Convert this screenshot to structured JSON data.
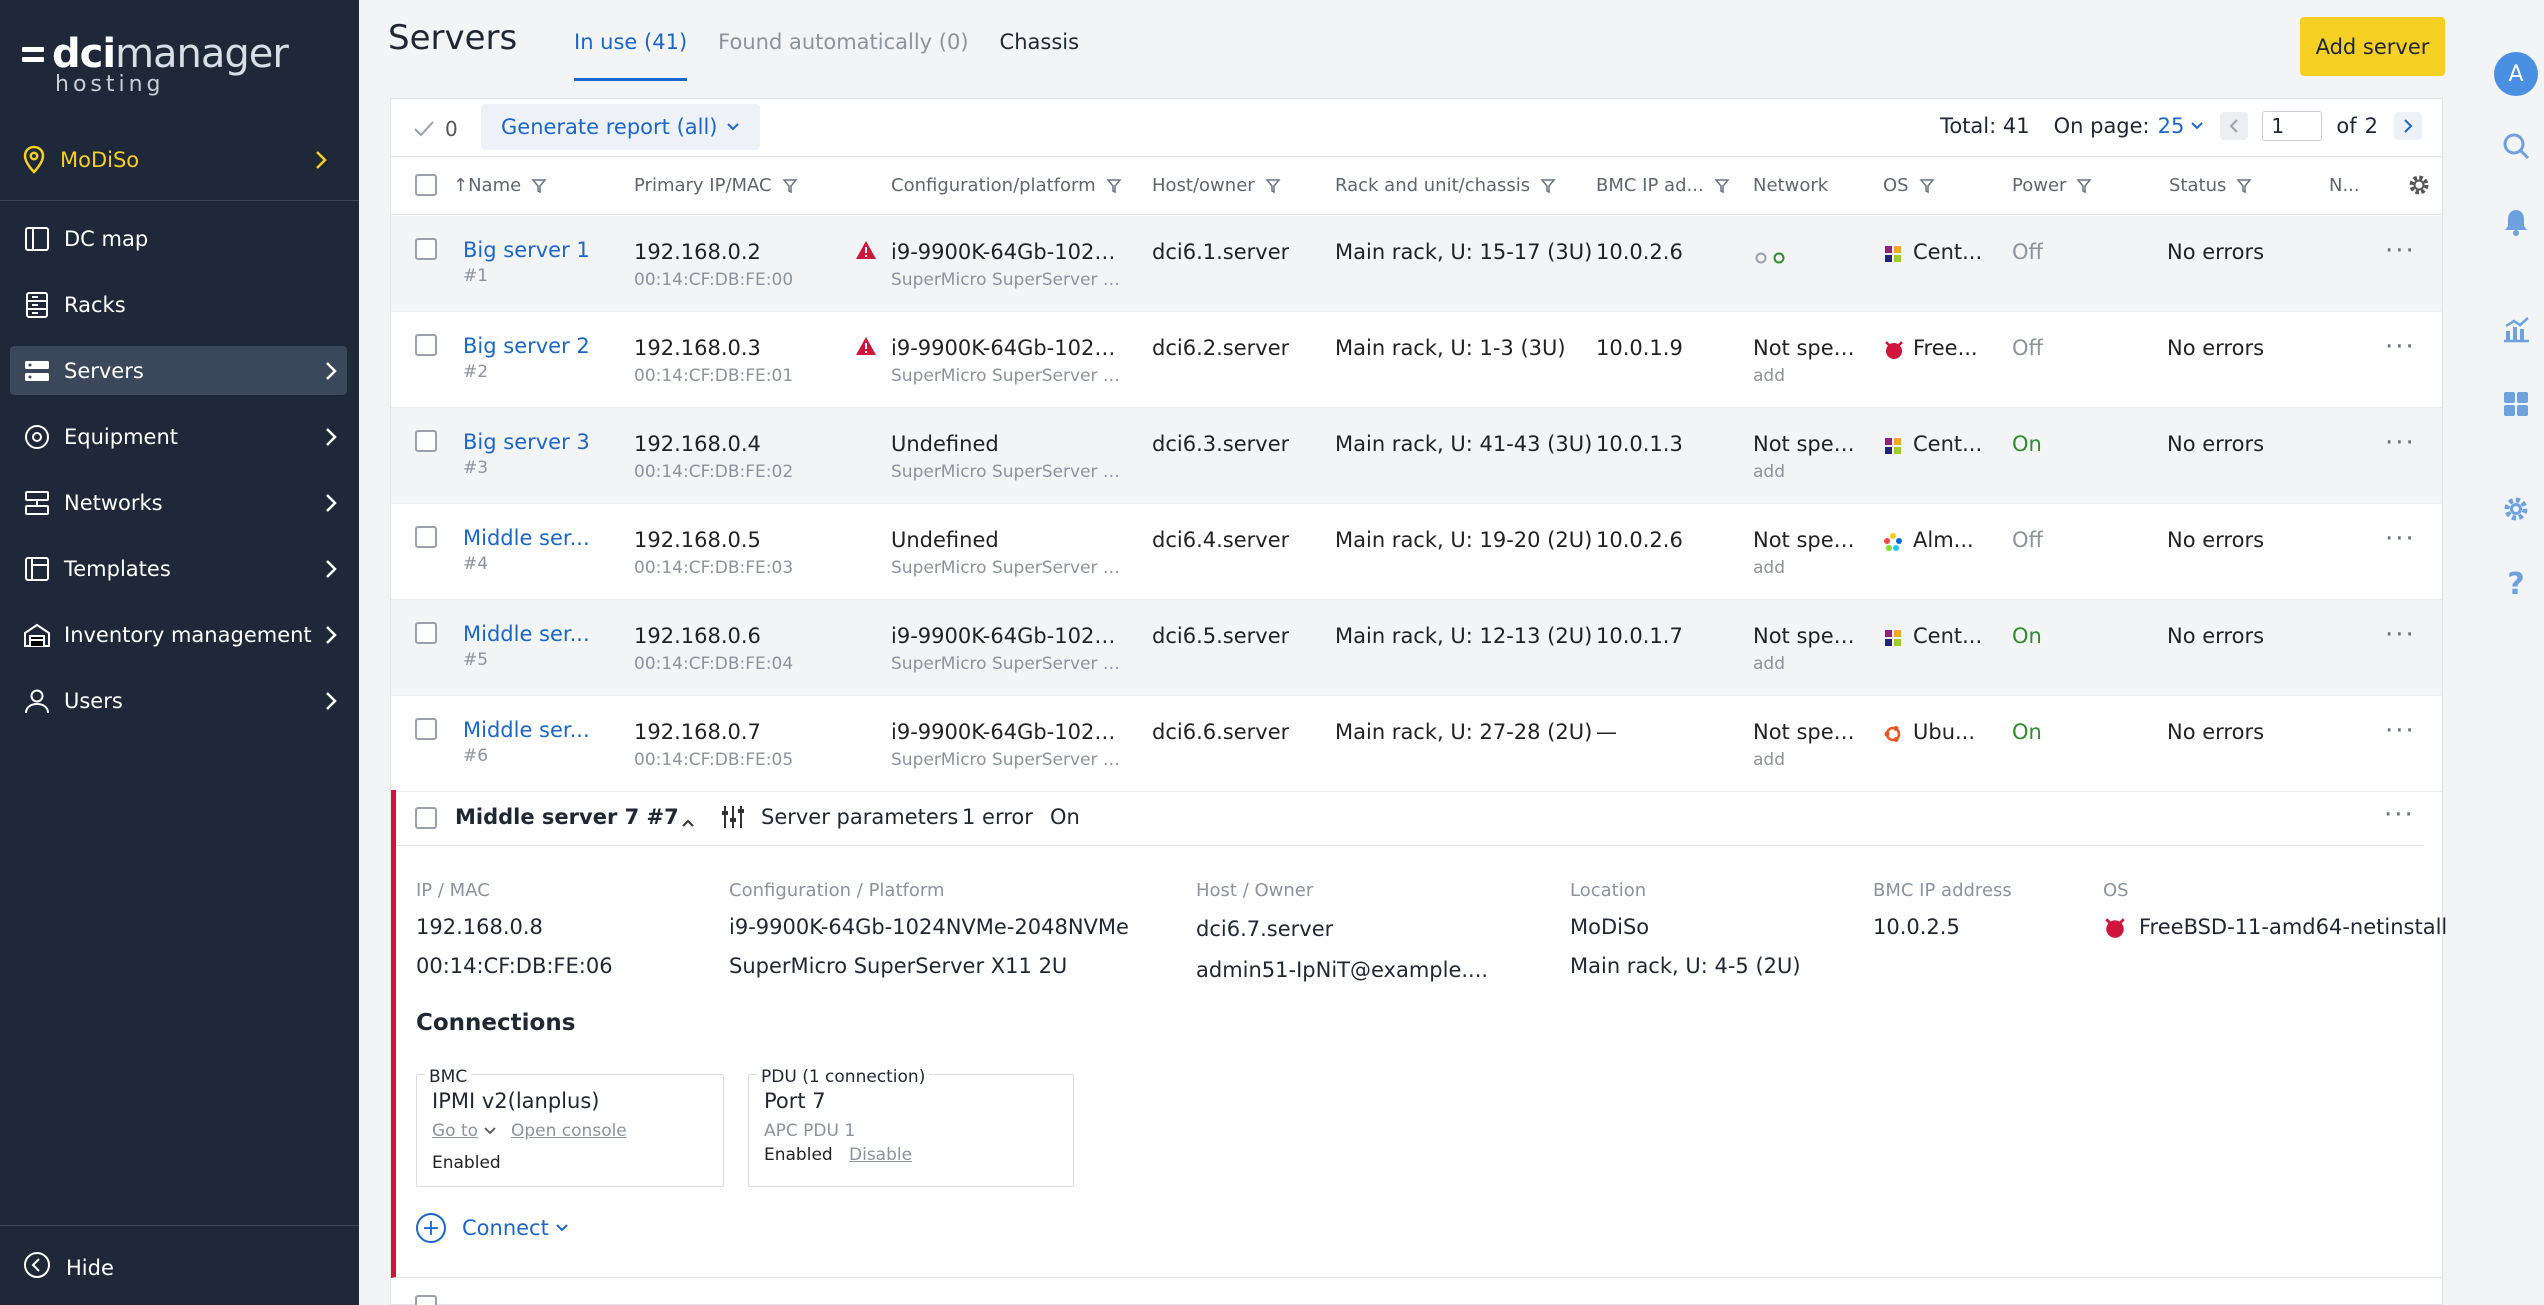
{
  "brand": {
    "logo_main": "manager",
    "logo_prefix": "dci",
    "logo_sub": "hosting"
  },
  "location": {
    "name": "MoDiSo"
  },
  "nav": {
    "items": [
      {
        "label": "DC map"
      },
      {
        "label": "Racks"
      },
      {
        "label": "Servers"
      },
      {
        "label": "Equipment"
      },
      {
        "label": "Networks"
      },
      {
        "label": "Templates"
      },
      {
        "label": "Inventory management"
      },
      {
        "label": "Users"
      }
    ],
    "hide_label": "Hide"
  },
  "page": {
    "title": "Servers"
  },
  "tabs": [
    {
      "label": "In use (41)"
    },
    {
      "label": "Found automatically (0)"
    },
    {
      "label": "Chassis"
    }
  ],
  "add_server_label": "Add server",
  "toolbar": {
    "selected_count": "0",
    "report_label": "Generate report (all)",
    "total": "Total: 41",
    "on_page_label": "On page:",
    "on_page_value": "25",
    "page_current": "1",
    "page_of": "of",
    "page_total": "2"
  },
  "columns": {
    "name": "↑Name",
    "ip": "Primary IP/MAC",
    "config": "Configuration/platform",
    "host": "Host/owner",
    "rack": "Rack and unit/chassis",
    "bmc": "BMC IP ad...",
    "network": "Network",
    "os": "OS",
    "power": "Power",
    "status": "Status",
    "n": "N..."
  },
  "rows": [
    {
      "name": "Big server 1",
      "id": "#1",
      "ip": "192.168.0.2",
      "mac": "00:14:CF:DB:FE:00",
      "config": "i9-9900K-64Gb-1024N...",
      "platform": "SuperMicro SuperServer X...",
      "host": "dci6.1.server",
      "rack": "Main rack, U: 15-17 (3U)",
      "bmc": "10.0.2.6",
      "network": "",
      "network_add": "",
      "os": "Cent...",
      "power": "Off",
      "status": "No errors"
    },
    {
      "name": "Big server 2",
      "id": "#2",
      "ip": "192.168.0.3",
      "mac": "00:14:CF:DB:FE:01",
      "config": "i9-9900K-64Gb-1024N...",
      "platform": "SuperMicro SuperServer X...",
      "host": "dci6.2.server",
      "rack": "Main rack, U: 1-3 (3U)",
      "bmc": "10.0.1.9",
      "network": "Not spec...",
      "network_add": "add",
      "os": "Free...",
      "power": "Off",
      "status": "No errors"
    },
    {
      "name": "Big server 3",
      "id": "#3",
      "ip": "192.168.0.4",
      "mac": "00:14:CF:DB:FE:02",
      "config": "Undefined",
      "platform": "SuperMicro SuperServer X...",
      "host": "dci6.3.server",
      "rack": "Main rack, U: 41-43 (3U)",
      "bmc": "10.0.1.3",
      "network": "Not spec...",
      "network_add": "add",
      "os": "Cent...",
      "power": "On",
      "status": "No errors"
    },
    {
      "name": "Middle ser...",
      "id": "#4",
      "ip": "192.168.0.5",
      "mac": "00:14:CF:DB:FE:03",
      "config": "Undefined",
      "platform": "SuperMicro SuperServer X...",
      "host": "dci6.4.server",
      "rack": "Main rack, U: 19-20 (2U)",
      "bmc": "10.0.2.6",
      "network": "Not spec...",
      "network_add": "add",
      "os": "Alm...",
      "power": "Off",
      "status": "No errors"
    },
    {
      "name": "Middle ser...",
      "id": "#5",
      "ip": "192.168.0.6",
      "mac": "00:14:CF:DB:FE:04",
      "config": "i9-9900K-64Gb-1024N...",
      "platform": "SuperMicro SuperServer X...",
      "host": "dci6.5.server",
      "rack": "Main rack, U: 12-13 (2U)",
      "bmc": "10.0.1.7",
      "network": "Not spec...",
      "network_add": "add",
      "os": "Cent...",
      "power": "On",
      "status": "No errors"
    },
    {
      "name": "Middle ser...",
      "id": "#6",
      "ip": "192.168.0.7",
      "mac": "00:14:CF:DB:FE:05",
      "config": "i9-9900K-64Gb-1024N...",
      "platform": "SuperMicro SuperServer X...",
      "host": "dci6.6.server",
      "rack": "Main rack, U: 27-28 (2U)",
      "bmc": "—",
      "network": "Not spec...",
      "network_add": "add",
      "os": "Ubu...",
      "power": "On",
      "status": "No errors"
    }
  ],
  "expanded": {
    "title": "Middle server 7 #7",
    "params_label": "Server parameters",
    "error_label": "1 error",
    "power": "On",
    "labels": {
      "ip": "IP / MAC",
      "config": "Configuration / Platform",
      "host": "Host / Owner",
      "location": "Location",
      "bmc": "BMC IP address",
      "os": "OS"
    },
    "ip": "192.168.0.8",
    "mac": "00:14:CF:DB:FE:06",
    "config": "i9-9900K-64Gb-1024NVMe-2048NVMe",
    "platform": "SuperMicro SuperServer X11 2U",
    "host": "dci6.7.server",
    "owner": "admin51-IpNiT@example....",
    "location": "MoDiSo",
    "rack": "Main rack, U: 4-5 (2U)",
    "bmc": "10.0.2.5",
    "os": "FreeBSD-11-amd64-netinstall",
    "connections_title": "Connections",
    "bmc_box": {
      "caption": "BMC",
      "link": "IPMI v2(lanplus)",
      "goto": "Go to",
      "console": "Open console",
      "state": "Enabled"
    },
    "pdu_box": {
      "caption": "PDU (1 connection)",
      "link": "Port 7",
      "device": "APC PDU 1",
      "state": "Enabled",
      "action": "Disable"
    },
    "connect_label": "Connect"
  },
  "colors": {
    "sidebar": "#1e2838",
    "accent": "#1a67c9",
    "brand_yellow": "#f6cf23",
    "error": "#d0143c",
    "success": "#2e8b2e"
  }
}
